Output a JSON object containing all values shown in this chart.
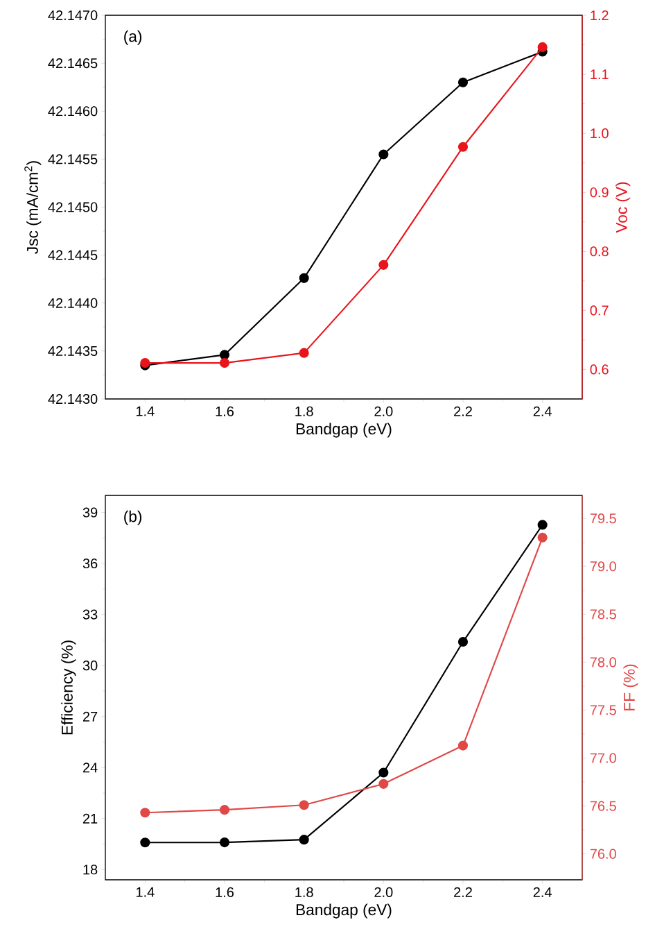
{
  "chart_data": [
    {
      "type": "line",
      "xlabel": "Bandgap (eV)",
      "ylabel": "Jsc (mA/cm$^{2}$)",
      "y2label": "Voc (V)",
      "annotations": [
        "(a)"
      ],
      "marker": "circle",
      "line_style": "solid",
      "x": [
        1.4,
        1.6,
        1.8,
        2.0,
        2.2,
        2.4
      ],
      "xlim": [
        1.3,
        2.5
      ],
      "xticks": [
        1.4,
        1.6,
        1.8,
        {
          "value": 2.0,
          "label": "2.0"
        },
        2.2,
        2.4
      ],
      "ylim": [
        42.143,
        42.147
      ],
      "yticks": [
        {
          "value": 42.143,
          "label": "42.1430"
        },
        {
          "value": 42.1435,
          "label": "42.1435"
        },
        {
          "value": 42.144,
          "label": "42.1440"
        },
        {
          "value": 42.1445,
          "label": "42.1445"
        },
        {
          "value": 42.145,
          "label": "42.1450"
        },
        {
          "value": 42.1455,
          "label": "42.1455"
        },
        {
          "value": 42.146,
          "label": "42.1460"
        },
        {
          "value": 42.1465,
          "label": "42.1465"
        },
        {
          "value": 42.147,
          "label": "42.1470"
        }
      ],
      "y2lim": [
        0.55,
        1.2
      ],
      "y2ticks": [
        0.6,
        0.7,
        0.8,
        0.9,
        {
          "value": 1.0,
          "label": "1.0"
        },
        1.1,
        1.2
      ],
      "series": [
        {
          "color": "#000000",
          "values": [
            42.14335,
            42.14346,
            42.14426,
            42.14555,
            42.1463,
            42.14662
          ]
        },
        {
          "color": "#e8141c",
          "axis": "y2",
          "values": [
            0.611,
            0.611,
            0.628,
            0.777,
            0.977,
            1.146
          ]
        }
      ]
    },
    {
      "type": "line",
      "xlabel": "Bandgap (eV)",
      "ylabel": "Efficiency (%)",
      "y2label": "FF (%)",
      "annotations": [
        "(b)"
      ],
      "marker": "circle",
      "line_style": "solid",
      "x": [
        1.4,
        1.6,
        1.8,
        2.0,
        2.2,
        2.4
      ],
      "xlim": [
        1.3,
        2.5
      ],
      "xticks": [
        1.4,
        1.6,
        1.8,
        {
          "value": 2.0,
          "label": "2.0"
        },
        2.2,
        2.4
      ],
      "ylim": [
        17.4,
        40
      ],
      "yticks": [
        18,
        21,
        24,
        27,
        30,
        33,
        36,
        39
      ],
      "y2lim": [
        75.73,
        79.74
      ],
      "y2ticks": [
        {
          "value": 76.0,
          "label": "76.0"
        },
        76.5,
        {
          "value": 77.0,
          "label": "77.0"
        },
        77.5,
        {
          "value": 78.0,
          "label": "78.0"
        },
        78.5,
        {
          "value": 79.0,
          "label": "79.0"
        },
        79.5
      ],
      "series": [
        {
          "color": "#000000",
          "values": [
            19.59,
            19.6,
            19.76,
            23.7,
            31.39,
            38.27
          ]
        },
        {
          "color": "#e04848",
          "axis": "y2",
          "values": [
            76.43,
            76.46,
            76.51,
            76.73,
            77.13,
            79.3
          ]
        }
      ]
    }
  ]
}
